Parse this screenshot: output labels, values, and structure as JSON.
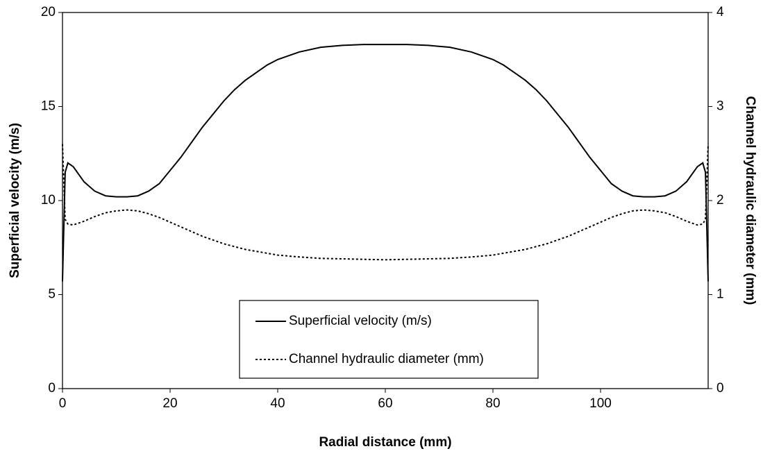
{
  "chart_data": {
    "type": "line",
    "x_label": "Radial distance (mm)",
    "y_label": "Superficial velocity (m/s)",
    "y2_label": "Channel hydraulic diameter (mm)",
    "xlim": [
      0,
      120
    ],
    "xticks": [
      0,
      20,
      40,
      60,
      80,
      100
    ],
    "ylim": [
      0,
      20
    ],
    "yticks": [
      0,
      5,
      10,
      15,
      20
    ],
    "y2lim": [
      0,
      4
    ],
    "y2ticks": [
      0,
      1,
      2,
      3,
      4
    ],
    "x": [
      0,
      0.5,
      1,
      2,
      4,
      6,
      8,
      10,
      12,
      14,
      16,
      18,
      20,
      22,
      24,
      26,
      28,
      30,
      32,
      34,
      36,
      38,
      40,
      44,
      48,
      52,
      56,
      60,
      64,
      68,
      72,
      76,
      80,
      82,
      84,
      86,
      88,
      90,
      92,
      94,
      96,
      98,
      100,
      102,
      104,
      106,
      108,
      110,
      112,
      114,
      116,
      118,
      119,
      119.5,
      120
    ],
    "series": [
      {
        "name": "Superficial velocity (m/s)",
        "color": "#000000",
        "dash": "solid",
        "values": [
          5.7,
          11.5,
          12.0,
          11.8,
          11.0,
          10.5,
          10.25,
          10.2,
          10.2,
          10.25,
          10.5,
          10.9,
          11.6,
          12.3,
          13.1,
          13.9,
          14.6,
          15.3,
          15.9,
          16.4,
          16.8,
          17.2,
          17.5,
          17.9,
          18.15,
          18.25,
          18.3,
          18.3,
          18.3,
          18.25,
          18.15,
          17.9,
          17.5,
          17.2,
          16.8,
          16.4,
          15.9,
          15.3,
          14.6,
          13.9,
          13.1,
          12.3,
          11.6,
          10.9,
          10.5,
          10.25,
          10.2,
          10.2,
          10.25,
          10.5,
          11.0,
          11.8,
          12.0,
          11.5,
          5.7
        ]
      },
      {
        "name": "Channel hydraulic diameter (mm)",
        "color": "#000000",
        "dash": "dotted",
        "axis": "y2",
        "values": [
          2.6,
          1.8,
          1.75,
          1.74,
          1.78,
          1.83,
          1.87,
          1.89,
          1.9,
          1.89,
          1.86,
          1.82,
          1.77,
          1.72,
          1.67,
          1.62,
          1.58,
          1.54,
          1.51,
          1.48,
          1.46,
          1.44,
          1.42,
          1.4,
          1.385,
          1.38,
          1.375,
          1.37,
          1.375,
          1.38,
          1.385,
          1.4,
          1.42,
          1.44,
          1.46,
          1.48,
          1.51,
          1.54,
          1.58,
          1.62,
          1.67,
          1.72,
          1.77,
          1.82,
          1.86,
          1.89,
          1.9,
          1.89,
          1.87,
          1.83,
          1.78,
          1.74,
          1.75,
          1.8,
          2.6
        ]
      }
    ]
  }
}
